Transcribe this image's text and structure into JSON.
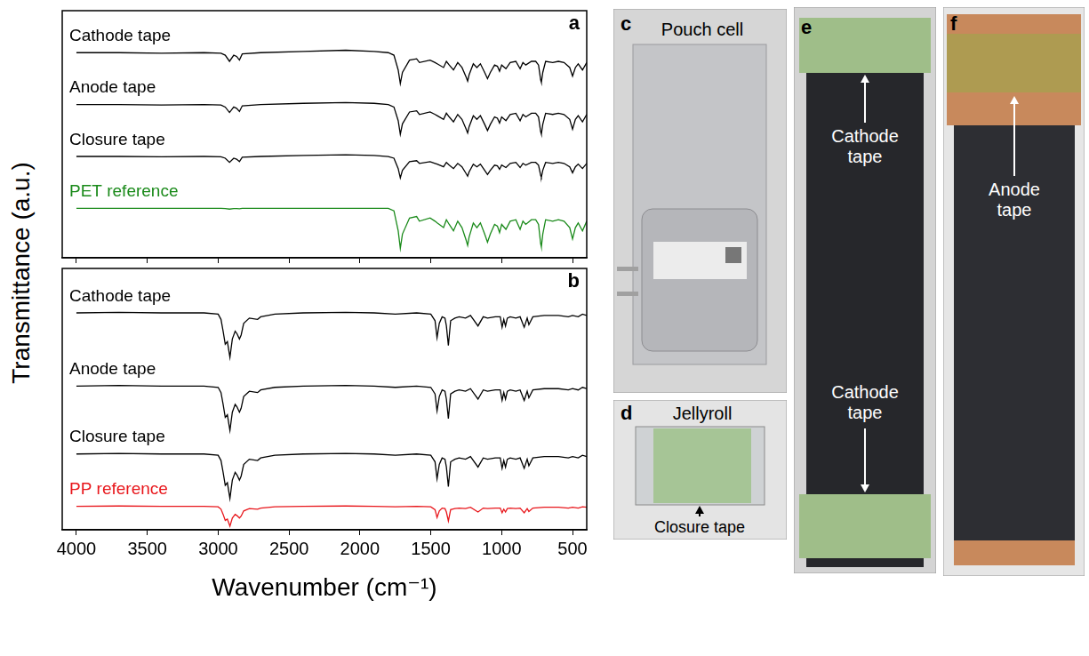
{
  "chart_data": [
    {
      "type": "line",
      "panel": "a",
      "x": [
        4000,
        3700,
        3400,
        3100,
        2980,
        2950,
        2920,
        2890,
        2870,
        2850,
        2830,
        2700,
        2400,
        2100,
        1900,
        1800,
        1760,
        1730,
        1715,
        1700,
        1650,
        1600,
        1580,
        1505,
        1470,
        1455,
        1410,
        1390,
        1370,
        1340,
        1310,
        1280,
        1250,
        1240,
        1230,
        1200,
        1175,
        1150,
        1120,
        1100,
        1080,
        1050,
        1030,
        1015,
        1000,
        970,
        940,
        900,
        870,
        850,
        830,
        790,
        760,
        740,
        725,
        720,
        710,
        690,
        640,
        600,
        560,
        520,
        500,
        480,
        460,
        430,
        400
      ],
      "xlim": [
        4100,
        400
      ],
      "xticks": [
        4000,
        3500,
        3000,
        2500,
        2000,
        1500,
        1000,
        500
      ],
      "ylim": [
        0,
        10
      ],
      "yticks": [],
      "grid": false,
      "tick_labels": false,
      "series": [
        {
          "name": "Cathode tape",
          "color": "#000000",
          "values": [
            8.3,
            8.3,
            8.28,
            8.3,
            8.28,
            8.2,
            7.95,
            8.2,
            8.15,
            8.0,
            8.25,
            8.3,
            8.35,
            8.4,
            8.35,
            8.3,
            8.2,
            7.6,
            7.05,
            7.5,
            8.0,
            8.05,
            7.9,
            8.0,
            7.9,
            7.85,
            7.7,
            7.95,
            7.8,
            7.6,
            7.9,
            7.7,
            7.3,
            7.15,
            7.4,
            7.85,
            7.7,
            7.85,
            7.5,
            7.25,
            7.5,
            7.8,
            7.75,
            7.55,
            7.8,
            7.65,
            7.9,
            7.95,
            7.65,
            7.9,
            7.8,
            7.95,
            7.95,
            7.8,
            7.2,
            7.1,
            7.5,
            7.95,
            7.9,
            7.95,
            7.9,
            7.7,
            7.35,
            7.7,
            7.85,
            7.6,
            7.9
          ]
        },
        {
          "name": "Anode tape",
          "color": "#000000",
          "values": [
            6.2,
            6.2,
            6.18,
            6.2,
            6.18,
            6.1,
            5.88,
            6.1,
            6.05,
            5.92,
            6.15,
            6.2,
            6.25,
            6.28,
            6.25,
            6.2,
            6.1,
            5.55,
            5.0,
            5.42,
            5.9,
            5.95,
            5.8,
            5.9,
            5.8,
            5.75,
            5.6,
            5.85,
            5.7,
            5.5,
            5.8,
            5.6,
            5.2,
            5.05,
            5.3,
            5.75,
            5.6,
            5.75,
            5.4,
            5.15,
            5.4,
            5.7,
            5.65,
            5.45,
            5.7,
            5.55,
            5.8,
            5.85,
            5.55,
            5.8,
            5.7,
            5.85,
            5.85,
            5.7,
            5.1,
            5.0,
            5.4,
            5.85,
            5.8,
            5.85,
            5.8,
            5.6,
            5.2,
            5.6,
            5.75,
            5.5,
            5.8
          ]
        },
        {
          "name": "Closure tape",
          "color": "#000000",
          "values": [
            4.1,
            4.1,
            4.09,
            4.1,
            4.09,
            4.03,
            3.86,
            4.03,
            3.99,
            3.89,
            4.07,
            4.1,
            4.14,
            4.17,
            4.14,
            4.1,
            4.03,
            3.61,
            3.23,
            3.54,
            3.89,
            3.93,
            3.82,
            3.89,
            3.82,
            3.79,
            3.68,
            3.86,
            3.75,
            3.61,
            3.82,
            3.68,
            3.4,
            3.3,
            3.47,
            3.79,
            3.68,
            3.79,
            3.54,
            3.37,
            3.54,
            3.75,
            3.72,
            3.58,
            3.75,
            3.65,
            3.82,
            3.86,
            3.65,
            3.82,
            3.75,
            3.86,
            3.86,
            3.75,
            3.33,
            3.26,
            3.54,
            3.86,
            3.82,
            3.86,
            3.82,
            3.68,
            3.44,
            3.68,
            3.79,
            3.61,
            3.82
          ]
        },
        {
          "name": "PET reference",
          "color": "#1a8a1a",
          "values": [
            2.0,
            2.0,
            2.0,
            2.0,
            2.0,
            1.99,
            1.97,
            1.99,
            1.99,
            1.98,
            2.0,
            2.0,
            2.0,
            2.0,
            2.0,
            2.0,
            1.9,
            1.09,
            0.38,
            0.96,
            1.61,
            1.67,
            1.48,
            1.61,
            1.48,
            1.41,
            1.22,
            1.54,
            1.35,
            1.09,
            1.48,
            1.22,
            0.7,
            0.5,
            0.83,
            1.41,
            1.22,
            1.41,
            0.96,
            0.63,
            0.96,
            1.35,
            1.28,
            1.02,
            1.35,
            1.15,
            1.48,
            1.54,
            1.15,
            1.48,
            1.35,
            1.54,
            1.54,
            1.35,
            0.57,
            0.44,
            0.96,
            1.54,
            1.48,
            1.54,
            1.48,
            1.22,
            0.76,
            1.22,
            1.41,
            1.09,
            1.48
          ]
        }
      ]
    },
    {
      "type": "line",
      "panel": "b",
      "x_label": "Wavenumber (cm⁻¹)",
      "x": [
        4000,
        3700,
        3400,
        3100,
        3000,
        2980,
        2965,
        2950,
        2935,
        2917,
        2900,
        2880,
        2867,
        2850,
        2838,
        2820,
        2780,
        2722,
        2700,
        2600,
        2400,
        2100,
        1900,
        1750,
        1600,
        1500,
        1470,
        1456,
        1440,
        1420,
        1400,
        1390,
        1376,
        1360,
        1330,
        1300,
        1255,
        1220,
        1167,
        1130,
        1100,
        1045,
        1010,
        997,
        985,
        973,
        960,
        940,
        900,
        870,
        841,
        820,
        808,
        780,
        700,
        600,
        530,
        500,
        460,
        430,
        400
      ],
      "xlim": [
        4100,
        400
      ],
      "xticks": [
        4000,
        3500,
        3000,
        2500,
        2000,
        1500,
        1000,
        500
      ],
      "ylim": [
        0,
        10
      ],
      "yticks": [],
      "grid": false,
      "tick_labels": "x",
      "series": [
        {
          "name": "Cathode tape",
          "color": "#000000",
          "values": [
            8.3,
            8.32,
            8.3,
            8.3,
            8.25,
            8.05,
            7.6,
            7.1,
            7.2,
            6.6,
            7.3,
            7.6,
            7.5,
            7.3,
            7.45,
            7.9,
            8.1,
            8.05,
            8.15,
            8.25,
            8.3,
            8.32,
            8.3,
            8.25,
            8.3,
            8.25,
            8.0,
            7.35,
            7.9,
            8.15,
            8.1,
            7.8,
            7.05,
            8.0,
            8.1,
            8.15,
            8.1,
            8.2,
            7.8,
            8.15,
            8.1,
            8.15,
            8.15,
            7.75,
            8.05,
            7.8,
            8.1,
            8.15,
            8.1,
            8.15,
            7.75,
            8.1,
            7.85,
            8.15,
            8.2,
            8.2,
            8.15,
            8.2,
            8.15,
            8.25,
            8.2
          ]
        },
        {
          "name": "Anode tape",
          "color": "#000000",
          "values": [
            5.5,
            5.52,
            5.5,
            5.5,
            5.45,
            5.25,
            4.8,
            4.3,
            4.4,
            3.8,
            4.5,
            4.8,
            4.7,
            4.5,
            4.65,
            5.1,
            5.3,
            5.25,
            5.35,
            5.45,
            5.5,
            5.52,
            5.5,
            5.45,
            5.5,
            5.45,
            5.2,
            4.55,
            5.1,
            5.35,
            5.3,
            5.0,
            4.25,
            5.2,
            5.3,
            5.35,
            5.3,
            5.4,
            5.0,
            5.35,
            5.3,
            5.35,
            5.35,
            4.95,
            5.25,
            5.0,
            5.3,
            5.35,
            5.3,
            5.35,
            4.95,
            5.3,
            5.05,
            5.35,
            5.4,
            5.4,
            5.35,
            5.4,
            5.35,
            5.45,
            5.4
          ]
        },
        {
          "name": "Closure tape",
          "color": "#000000",
          "values": [
            2.9,
            2.92,
            2.9,
            2.9,
            2.85,
            2.65,
            2.2,
            1.7,
            1.8,
            1.2,
            1.9,
            2.2,
            2.1,
            1.9,
            2.05,
            2.5,
            2.7,
            2.65,
            2.75,
            2.85,
            2.9,
            2.92,
            2.9,
            2.85,
            2.9,
            2.85,
            2.6,
            1.95,
            2.5,
            2.75,
            2.7,
            2.4,
            1.65,
            2.6,
            2.7,
            2.75,
            2.7,
            2.8,
            2.4,
            2.75,
            2.7,
            2.75,
            2.75,
            2.35,
            2.65,
            2.4,
            2.7,
            2.75,
            2.7,
            2.75,
            2.35,
            2.7,
            2.45,
            2.75,
            2.8,
            2.8,
            2.75,
            2.8,
            2.75,
            2.85,
            2.8
          ]
        },
        {
          "name": "PP reference",
          "color": "#e8161b",
          "values": [
            0.9,
            0.91,
            0.9,
            0.9,
            0.88,
            0.79,
            0.59,
            0.36,
            0.41,
            0.14,
            0.45,
            0.59,
            0.54,
            0.45,
            0.52,
            0.72,
            0.81,
            0.79,
            0.83,
            0.88,
            0.9,
            0.91,
            0.9,
            0.88,
            0.9,
            0.88,
            0.77,
            0.47,
            0.72,
            0.83,
            0.81,
            0.68,
            0.34,
            0.77,
            0.81,
            0.83,
            0.81,
            0.86,
            0.68,
            0.83,
            0.81,
            0.83,
            0.83,
            0.65,
            0.79,
            0.68,
            0.81,
            0.83,
            0.81,
            0.83,
            0.65,
            0.81,
            0.7,
            0.83,
            0.86,
            0.86,
            0.83,
            0.86,
            0.83,
            0.88,
            0.86
          ]
        }
      ]
    }
  ],
  "y_label": "Transmittance (a.u.)",
  "photos": [
    {
      "panel": "c",
      "labels": [
        "Pouch cell"
      ]
    },
    {
      "panel": "d",
      "labels": [
        "Jellyroll",
        "Closure tape"
      ]
    },
    {
      "panel": "e",
      "labels": [
        "Cathode tape",
        "Cathode tape"
      ]
    },
    {
      "panel": "f",
      "labels": [
        "Anode tape"
      ]
    }
  ]
}
